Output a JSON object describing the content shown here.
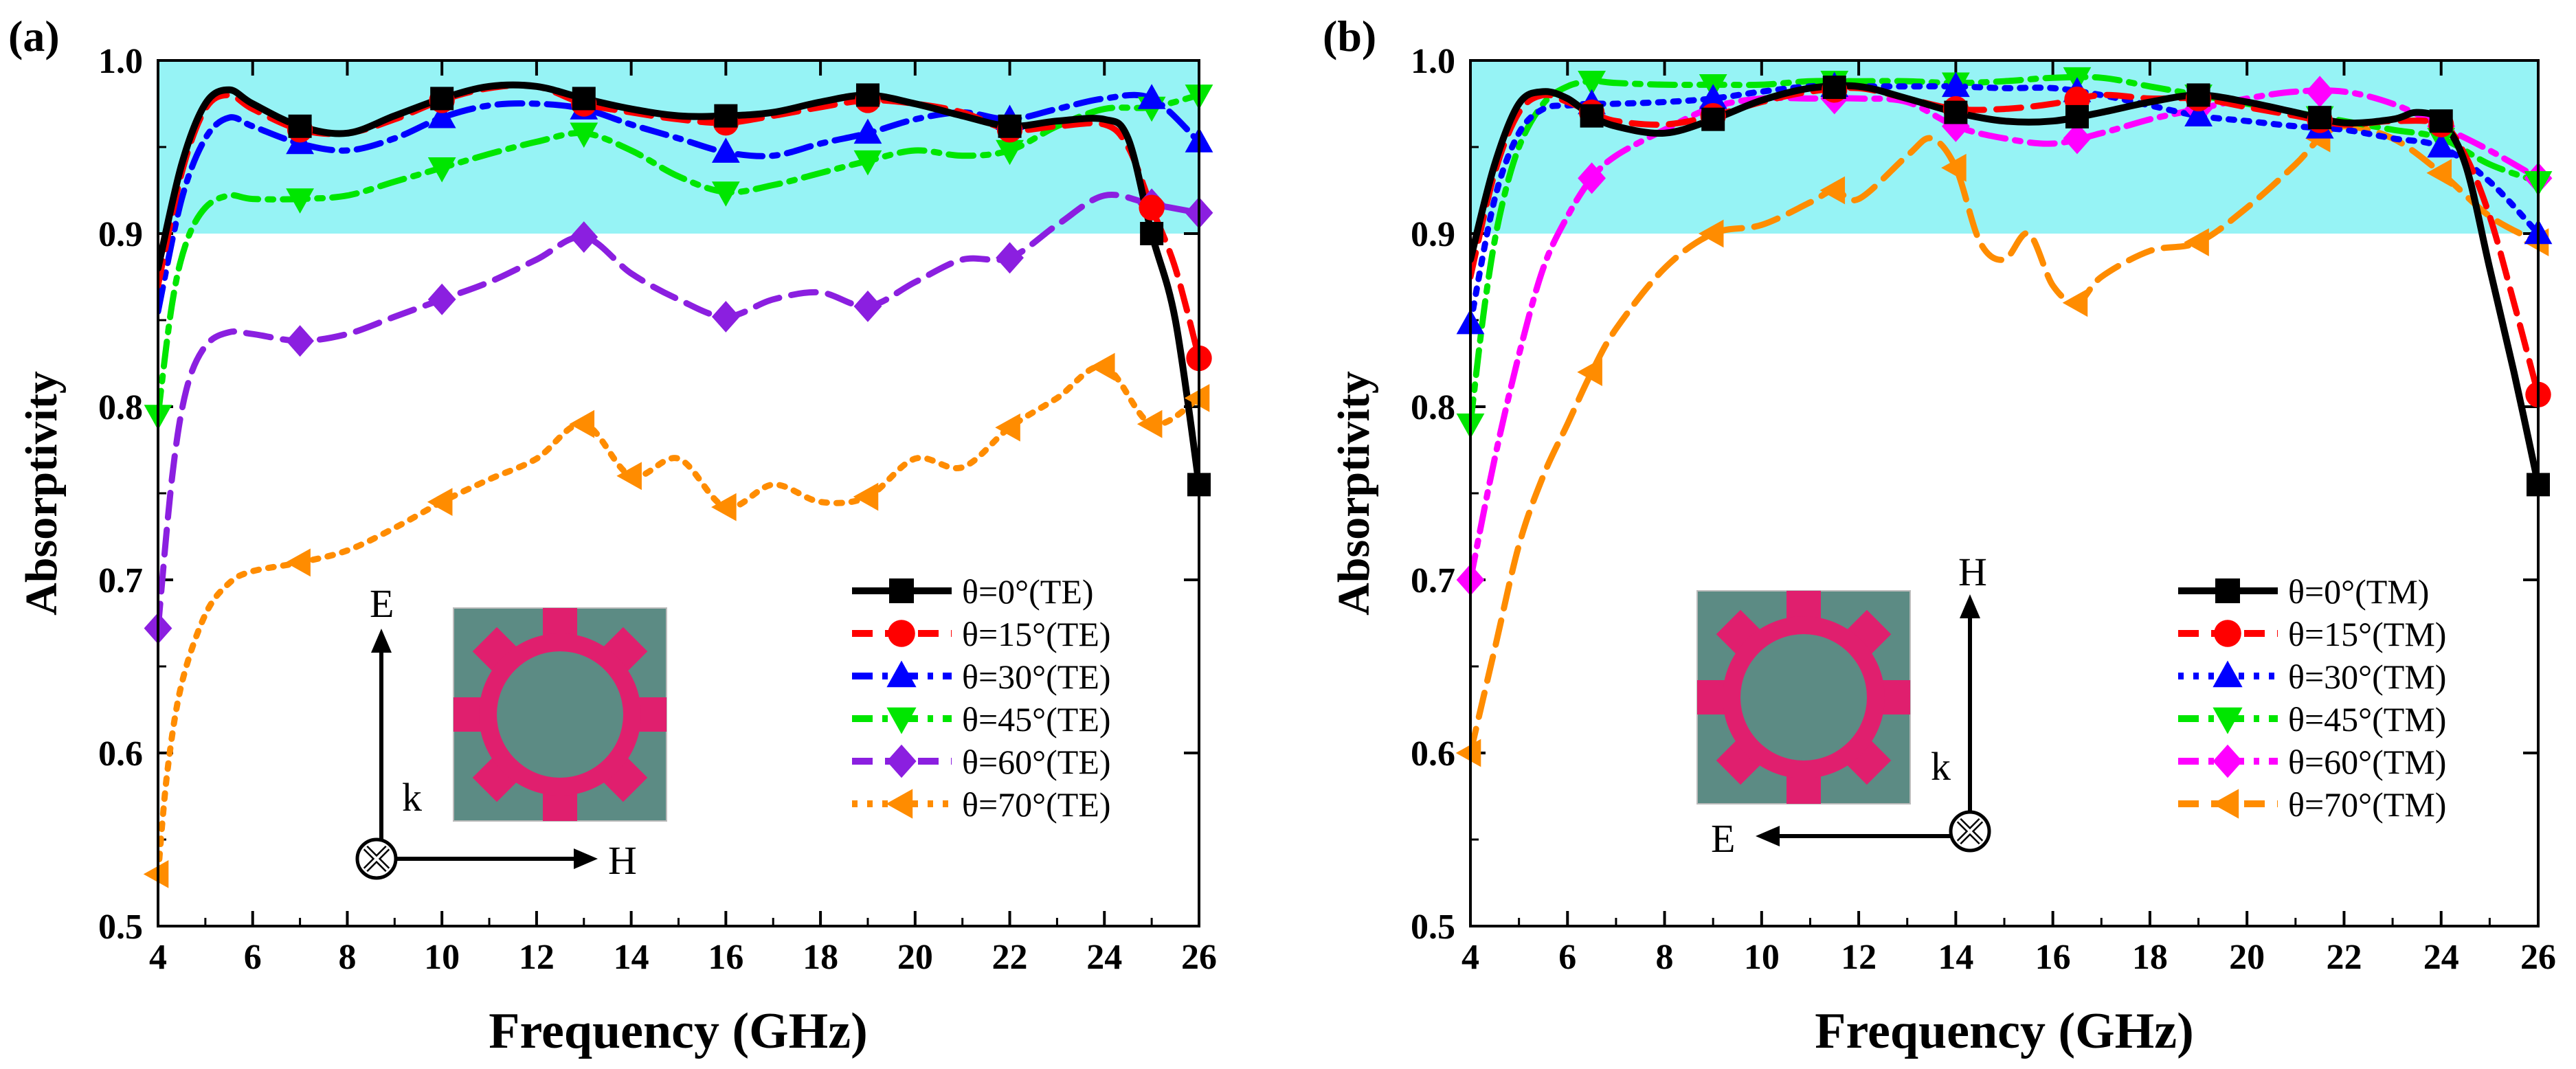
{
  "figure": {
    "panels": [
      {
        "label": "(a)"
      },
      {
        "label": "(b)"
      }
    ]
  },
  "chart_data": [
    {
      "type": "line",
      "panel": "(a)",
      "xlabel": "Frequency (GHz)",
      "ylabel": "Absorptivity",
      "xlim": [
        4,
        26
      ],
      "ylim": [
        0.5,
        1.0
      ],
      "xticks": [
        4,
        6,
        8,
        10,
        12,
        14,
        16,
        18,
        20,
        22,
        24,
        26
      ],
      "yticks": [
        0.5,
        0.6,
        0.7,
        0.8,
        0.9,
        1.0
      ],
      "highlight_band": [
        0.9,
        1.0
      ],
      "highlight_color": "#96f3f5",
      "legend_position": "bottom-right",
      "inset": {
        "e_label": "E",
        "h_label": "H",
        "k_label": "k"
      },
      "series": [
        {
          "name": "θ=0°(TE)",
          "color": "#000000",
          "dash": "solid",
          "marker": "square",
          "x": [
            4,
            4.5,
            5,
            5.5,
            6,
            7,
            8,
            9,
            10,
            11,
            12,
            13,
            14,
            15,
            16,
            17,
            18,
            19,
            20,
            21,
            22,
            23,
            24,
            24.5,
            25,
            25.5,
            26
          ],
          "y": [
            0.88,
            0.94,
            0.975,
            0.983,
            0.975,
            0.962,
            0.958,
            0.968,
            0.978,
            0.985,
            0.985,
            0.978,
            0.972,
            0.968,
            0.968,
            0.97,
            0.976,
            0.98,
            0.975,
            0.968,
            0.962,
            0.965,
            0.966,
            0.955,
            0.9,
            0.85,
            0.755
          ],
          "marker_x": [
            7,
            10,
            13,
            16,
            19,
            22,
            25,
            26
          ]
        },
        {
          "name": "θ=15°(TE)",
          "color": "#ff0000",
          "dash": "dashed",
          "marker": "circle",
          "x": [
            4,
            4.5,
            5,
            5.5,
            6,
            7,
            8,
            9,
            10,
            11,
            12,
            13,
            14,
            15,
            16,
            17,
            18,
            19,
            20,
            21,
            22,
            23,
            24,
            24.5,
            25,
            25.5,
            26
          ],
          "y": [
            0.87,
            0.935,
            0.972,
            0.98,
            0.972,
            0.96,
            0.958,
            0.966,
            0.977,
            0.984,
            0.985,
            0.975,
            0.97,
            0.966,
            0.964,
            0.968,
            0.973,
            0.977,
            0.975,
            0.97,
            0.96,
            0.962,
            0.963,
            0.95,
            0.915,
            0.88,
            0.828
          ],
          "marker_x": [
            7,
            10,
            13,
            16,
            19,
            22,
            25,
            26
          ]
        },
        {
          "name": "θ=30°(TE)",
          "color": "#0000ff",
          "dash": "dashdot",
          "marker": "triangle-up",
          "x": [
            4,
            4.5,
            5,
            5.5,
            6,
            7,
            8,
            9,
            10,
            11,
            12,
            13,
            14,
            15,
            16,
            17,
            18,
            19,
            20,
            21,
            22,
            23,
            24,
            25,
            26
          ],
          "y": [
            0.855,
            0.92,
            0.955,
            0.967,
            0.962,
            0.952,
            0.948,
            0.955,
            0.967,
            0.974,
            0.975,
            0.972,
            0.963,
            0.955,
            0.947,
            0.945,
            0.952,
            0.958,
            0.966,
            0.97,
            0.966,
            0.972,
            0.978,
            0.978,
            0.953
          ],
          "marker_x": [
            7,
            10,
            13,
            16,
            19,
            22,
            25,
            26
          ]
        },
        {
          "name": "θ=45°(TE)",
          "color": "#00e600",
          "dash": "dashdot",
          "marker": "triangle-down",
          "x": [
            4,
            4.3,
            4.6,
            5,
            5.5,
            6,
            7,
            8,
            9,
            10,
            11,
            12,
            13,
            14,
            15,
            16,
            17,
            18,
            19,
            20,
            21,
            22,
            23,
            24,
            25,
            26
          ],
          "y": [
            0.795,
            0.86,
            0.895,
            0.915,
            0.922,
            0.92,
            0.92,
            0.922,
            0.93,
            0.938,
            0.946,
            0.953,
            0.958,
            0.948,
            0.933,
            0.924,
            0.928,
            0.935,
            0.942,
            0.948,
            0.945,
            0.948,
            0.962,
            0.972,
            0.973,
            0.98
          ],
          "marker_x": [
            4,
            7,
            10,
            13,
            16,
            19,
            22,
            25,
            26
          ]
        },
        {
          "name": "θ=60°(TE)",
          "color": "#8b1fe0",
          "dash": "dashed",
          "marker": "diamond",
          "x": [
            4,
            4.3,
            4.6,
            5,
            5.5,
            6,
            7,
            8,
            9,
            10,
            11,
            12,
            13,
            14,
            15,
            16,
            17,
            18,
            19,
            20,
            21,
            22,
            23,
            24,
            25,
            26
          ],
          "y": [
            0.672,
            0.76,
            0.81,
            0.835,
            0.843,
            0.842,
            0.838,
            0.842,
            0.852,
            0.862,
            0.872,
            0.885,
            0.898,
            0.877,
            0.862,
            0.852,
            0.862,
            0.866,
            0.858,
            0.872,
            0.885,
            0.886,
            0.905,
            0.922,
            0.917,
            0.912
          ],
          "marker_x": [
            4,
            7,
            10,
            13,
            16,
            19,
            22,
            25,
            26
          ]
        },
        {
          "name": "θ=70°(TE)",
          "color": "#ff8c00",
          "dash": "dotted",
          "marker": "triangle-left",
          "x": [
            4,
            4.2,
            4.5,
            5,
            5.5,
            6,
            7,
            8,
            9,
            10,
            11,
            12,
            13,
            14,
            15,
            16,
            17,
            18,
            19,
            20,
            21,
            22,
            23,
            24,
            25,
            26
          ],
          "y": [
            0.53,
            0.59,
            0.64,
            0.68,
            0.698,
            0.705,
            0.71,
            0.717,
            0.73,
            0.745,
            0.758,
            0.77,
            0.79,
            0.76,
            0.77,
            0.742,
            0.755,
            0.745,
            0.748,
            0.77,
            0.765,
            0.788,
            0.805,
            0.823,
            0.79,
            0.805
          ],
          "marker_x": [
            4,
            7,
            10,
            13,
            14,
            16,
            19,
            22,
            24,
            25,
            26
          ]
        }
      ]
    },
    {
      "type": "line",
      "panel": "(b)",
      "xlabel": "Frequency (GHz)",
      "ylabel": "Absorptivity",
      "xlim": [
        4,
        26
      ],
      "ylim": [
        0.5,
        1.0
      ],
      "xticks": [
        4,
        6,
        8,
        10,
        12,
        14,
        16,
        18,
        20,
        22,
        24,
        26
      ],
      "yticks": [
        0.5,
        0.6,
        0.7,
        0.8,
        0.9,
        1.0
      ],
      "highlight_band": [
        0.9,
        1.0
      ],
      "highlight_color": "#96f3f5",
      "legend_position": "bottom-right",
      "inset": {
        "e_label": "E",
        "h_label": "H",
        "k_label": "k"
      },
      "series": [
        {
          "name": "θ=0°(TM)",
          "color": "#000000",
          "dash": "solid",
          "marker": "square",
          "x": [
            4,
            4.5,
            5,
            5.5,
            6,
            6.5,
            7,
            8,
            9,
            10,
            11,
            12,
            13,
            14,
            15,
            16,
            17,
            18,
            19,
            20,
            21,
            22,
            23,
            23.5,
            24,
            24.5,
            25,
            25.5,
            26
          ],
          "y": [
            0.885,
            0.94,
            0.975,
            0.982,
            0.978,
            0.968,
            0.962,
            0.958,
            0.966,
            0.977,
            0.984,
            0.985,
            0.978,
            0.97,
            0.965,
            0.965,
            0.97,
            0.976,
            0.98,
            0.976,
            0.97,
            0.964,
            0.966,
            0.97,
            0.965,
            0.94,
            0.88,
            0.82,
            0.755
          ],
          "marker_x": [
            6.5,
            9,
            11.5,
            14,
            16.5,
            19,
            21.5,
            24,
            26
          ]
        },
        {
          "name": "θ=15°(TM)",
          "color": "#ff0000",
          "dash": "dashed",
          "marker": "circle",
          "x": [
            4,
            4.5,
            5,
            5.5,
            6,
            6.5,
            7,
            8,
            9,
            10,
            11,
            12,
            13,
            14,
            15,
            16,
            17,
            18,
            19,
            20,
            21,
            22,
            23,
            24,
            24.5,
            25,
            25.5,
            26
          ],
          "y": [
            0.875,
            0.935,
            0.97,
            0.98,
            0.976,
            0.97,
            0.965,
            0.963,
            0.968,
            0.976,
            0.982,
            0.984,
            0.978,
            0.972,
            0.972,
            0.975,
            0.98,
            0.978,
            0.978,
            0.973,
            0.968,
            0.963,
            0.965,
            0.963,
            0.945,
            0.91,
            0.86,
            0.807
          ],
          "marker_x": [
            6.5,
            9,
            11.5,
            14,
            16.5,
            19,
            21.5,
            24,
            26
          ]
        },
        {
          "name": "θ=30°(TM)",
          "color": "#0000ff",
          "dash": "dotted",
          "marker": "triangle-up",
          "x": [
            4,
            4.5,
            5,
            5.5,
            6,
            6.5,
            7,
            8,
            9,
            10,
            11,
            12,
            13,
            14,
            15,
            16,
            17,
            18,
            19,
            20,
            21,
            22,
            23,
            24,
            25,
            26
          ],
          "y": [
            0.848,
            0.92,
            0.958,
            0.972,
            0.974,
            0.975,
            0.975,
            0.976,
            0.978,
            0.982,
            0.985,
            0.985,
            0.985,
            0.985,
            0.984,
            0.984,
            0.98,
            0.974,
            0.968,
            0.965,
            0.962,
            0.96,
            0.955,
            0.95,
            0.93,
            0.9
          ],
          "marker_x": [
            4,
            6.5,
            9,
            11.5,
            14,
            16.5,
            19,
            21.5,
            24,
            26
          ]
        },
        {
          "name": "θ=45°(TM)",
          "color": "#00e600",
          "dash": "dashdot",
          "marker": "triangle-down",
          "x": [
            4,
            4.3,
            4.6,
            5,
            5.5,
            6,
            6.5,
            7,
            8,
            9,
            10,
            11,
            12,
            13,
            14,
            15,
            16,
            17,
            18,
            19,
            20,
            21,
            22,
            23,
            24,
            25,
            26
          ],
          "y": [
            0.79,
            0.86,
            0.91,
            0.95,
            0.975,
            0.985,
            0.988,
            0.987,
            0.986,
            0.986,
            0.986,
            0.988,
            0.988,
            0.988,
            0.987,
            0.988,
            0.99,
            0.99,
            0.985,
            0.98,
            0.975,
            0.97,
            0.965,
            0.96,
            0.955,
            0.94,
            0.93
          ],
          "marker_x": [
            4,
            6.5,
            9,
            11.5,
            14,
            16.5,
            19,
            21.5,
            24,
            26
          ]
        },
        {
          "name": "θ=60°(TM)",
          "color": "#ff00ff",
          "dash": "dashdot",
          "marker": "diamond",
          "x": [
            4,
            4.5,
            5,
            5.5,
            6,
            6.5,
            7,
            8,
            9,
            10,
            11,
            12,
            13,
            14,
            15,
            16,
            17,
            18,
            19,
            20,
            21,
            22,
            23,
            24,
            25,
            26
          ],
          "y": [
            0.7,
            0.77,
            0.83,
            0.88,
            0.91,
            0.932,
            0.945,
            0.96,
            0.973,
            0.978,
            0.978,
            0.978,
            0.976,
            0.962,
            0.955,
            0.952,
            0.958,
            0.966,
            0.972,
            0.978,
            0.982,
            0.982,
            0.975,
            0.962,
            0.948,
            0.932
          ],
          "marker_x": [
            4,
            6.5,
            9,
            11.5,
            14,
            16.5,
            19,
            21.5,
            24,
            26
          ]
        },
        {
          "name": "θ=70°(TM)",
          "color": "#ff8c00",
          "dash": "dashed",
          "marker": "triangle-left",
          "x": [
            4,
            4.5,
            5,
            5.5,
            6,
            6.5,
            7,
            8,
            9,
            10,
            11,
            11.5,
            12,
            13,
            13.5,
            14,
            14.5,
            15,
            15.5,
            16,
            16.5,
            17,
            18,
            19,
            20,
            21,
            21.5,
            22,
            23,
            24,
            25,
            26
          ],
          "y": [
            0.6,
            0.66,
            0.72,
            0.76,
            0.79,
            0.82,
            0.845,
            0.88,
            0.9,
            0.905,
            0.918,
            0.925,
            0.92,
            0.945,
            0.955,
            0.938,
            0.895,
            0.885,
            0.9,
            0.87,
            0.86,
            0.875,
            0.89,
            0.895,
            0.915,
            0.94,
            0.955,
            0.962,
            0.955,
            0.935,
            0.91,
            0.895
          ],
          "marker_x": [
            4,
            6.5,
            9,
            11.5,
            14,
            16.5,
            19,
            21.5,
            24,
            26
          ]
        }
      ]
    }
  ]
}
